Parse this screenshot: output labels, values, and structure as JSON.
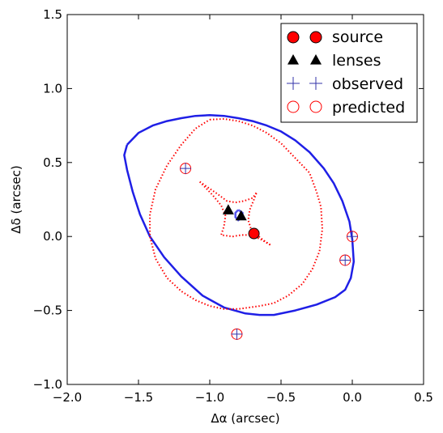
{
  "chart_data": {
    "type": "scatter",
    "title": "",
    "xlabel": "Δα (arcsec)",
    "ylabel": "Δδ (arcsec)",
    "xlim": [
      -2.0,
      0.5
    ],
    "ylim": [
      -1.0,
      1.5
    ],
    "x_ticks": [
      "−2.0",
      "−1.5",
      "−1.0",
      "−0.5",
      "0.0",
      "0.5"
    ],
    "y_ticks": [
      "−1.0",
      "−0.5",
      "0.0",
      "0.5",
      "1.0",
      "1.5"
    ],
    "x_tick_values": [
      -2.0,
      -1.5,
      -1.0,
      -0.5,
      0.0,
      0.5
    ],
    "y_tick_values": [
      -1.0,
      -0.5,
      0.0,
      0.5,
      1.0,
      1.5
    ],
    "grid": false,
    "legend_position": "top-right",
    "legend": [
      {
        "label": "source",
        "marker": "circle",
        "color": "#ff0000"
      },
      {
        "label": "lenses",
        "marker": "triangle",
        "color": "#000000"
      },
      {
        "label": "observed",
        "marker": "plus",
        "color": "#3333aa"
      },
      {
        "label": "predicted",
        "marker": "open-circle",
        "color": "#ff0000"
      }
    ],
    "source": [
      [
        -0.69,
        0.02
      ]
    ],
    "lenses": [
      [
        -0.87,
        0.18
      ],
      [
        -0.78,
        0.14
      ]
    ],
    "observed": [
      [
        -1.17,
        0.46
      ],
      [
        0.0,
        0.0
      ],
      [
        -0.05,
        -0.16
      ],
      [
        -0.81,
        -0.66
      ]
    ],
    "predicted": [
      [
        -1.17,
        0.46
      ],
      [
        0.0,
        0.0
      ],
      [
        -0.05,
        -0.16
      ],
      [
        -0.81,
        -0.66
      ]
    ],
    "critical_curve": [
      [
        -1.58,
        0.62
      ],
      [
        -1.5,
        0.7
      ],
      [
        -1.4,
        0.75
      ],
      [
        -1.3,
        0.78
      ],
      [
        -1.2,
        0.8
      ],
      [
        -1.1,
        0.815
      ],
      [
        -1.0,
        0.82
      ],
      [
        -0.9,
        0.815
      ],
      [
        -0.8,
        0.8
      ],
      [
        -0.7,
        0.78
      ],
      [
        -0.6,
        0.75
      ],
      [
        -0.5,
        0.71
      ],
      [
        -0.4,
        0.65
      ],
      [
        -0.3,
        0.57
      ],
      [
        -0.2,
        0.46
      ],
      [
        -0.13,
        0.36
      ],
      [
        -0.07,
        0.24
      ],
      [
        -0.02,
        0.1
      ],
      [
        0.0,
        -0.02
      ],
      [
        0.01,
        -0.17
      ],
      [
        -0.01,
        -0.28
      ],
      [
        -0.05,
        -0.36
      ],
      [
        -0.12,
        -0.41
      ],
      [
        -0.25,
        -0.46
      ],
      [
        -0.4,
        -0.5
      ],
      [
        -0.55,
        -0.53
      ],
      [
        -0.65,
        -0.53
      ],
      [
        -0.75,
        -0.52
      ],
      [
        -0.9,
        -0.48
      ],
      [
        -1.05,
        -0.4
      ],
      [
        -1.2,
        -0.27
      ],
      [
        -1.32,
        -0.14
      ],
      [
        -1.42,
        0.0
      ],
      [
        -1.49,
        0.15
      ],
      [
        -1.54,
        0.3
      ],
      [
        -1.58,
        0.45
      ],
      [
        -1.6,
        0.55
      ],
      [
        -1.58,
        0.62
      ]
    ],
    "critical_inner": [
      [
        -0.8,
        0.18
      ],
      [
        -0.77,
        0.16
      ],
      [
        -0.77,
        0.13
      ],
      [
        -0.8,
        0.11
      ],
      [
        -0.82,
        0.13
      ],
      [
        -0.82,
        0.16
      ],
      [
        -0.8,
        0.18
      ]
    ],
    "caustic_outer": [
      [
        -1.0,
        0.79
      ],
      [
        -0.9,
        0.795
      ],
      [
        -0.8,
        0.78
      ],
      [
        -0.7,
        0.75
      ],
      [
        -0.6,
        0.7
      ],
      [
        -0.5,
        0.63
      ],
      [
        -0.4,
        0.53
      ],
      [
        -0.3,
        0.43
      ],
      [
        -0.25,
        0.3
      ],
      [
        -0.22,
        0.2
      ],
      [
        -0.21,
        0.05
      ],
      [
        -0.23,
        -0.1
      ],
      [
        -0.28,
        -0.22
      ],
      [
        -0.35,
        -0.32
      ],
      [
        -0.45,
        -0.4
      ],
      [
        -0.55,
        -0.45
      ],
      [
        -0.65,
        -0.47
      ],
      [
        -0.8,
        -0.49
      ],
      [
        -0.9,
        -0.49
      ],
      [
        -1.0,
        -0.47
      ],
      [
        -1.1,
        -0.43
      ],
      [
        -1.2,
        -0.37
      ],
      [
        -1.3,
        -0.28
      ],
      [
        -1.38,
        -0.15
      ],
      [
        -1.42,
        0.0
      ],
      [
        -1.42,
        0.15
      ],
      [
        -1.38,
        0.32
      ],
      [
        -1.3,
        0.48
      ],
      [
        -1.2,
        0.62
      ],
      [
        -1.1,
        0.73
      ],
      [
        -1.0,
        0.79
      ]
    ],
    "caustic_inner": [
      [
        -1.07,
        0.37
      ],
      [
        -0.95,
        0.29
      ],
      [
        -0.88,
        0.24
      ],
      [
        -0.82,
        0.23
      ],
      [
        -0.76,
        0.24
      ],
      [
        -0.7,
        0.26
      ],
      [
        -0.67,
        0.3
      ],
      [
        -0.69,
        0.25
      ],
      [
        -0.72,
        0.18
      ],
      [
        -0.73,
        0.11
      ],
      [
        -0.71,
        0.05
      ],
      [
        -0.68,
        0.02
      ],
      [
        -0.63,
        -0.02
      ],
      [
        -0.57,
        -0.06
      ],
      [
        -0.64,
        -0.02
      ],
      [
        -0.71,
        0.01
      ],
      [
        -0.78,
        0.01
      ],
      [
        -0.84,
        0.0
      ],
      [
        -0.92,
        0.01
      ],
      [
        -0.9,
        0.07
      ],
      [
        -0.89,
        0.14
      ],
      [
        -0.92,
        0.21
      ],
      [
        -0.98,
        0.28
      ],
      [
        -1.07,
        0.37
      ]
    ]
  }
}
